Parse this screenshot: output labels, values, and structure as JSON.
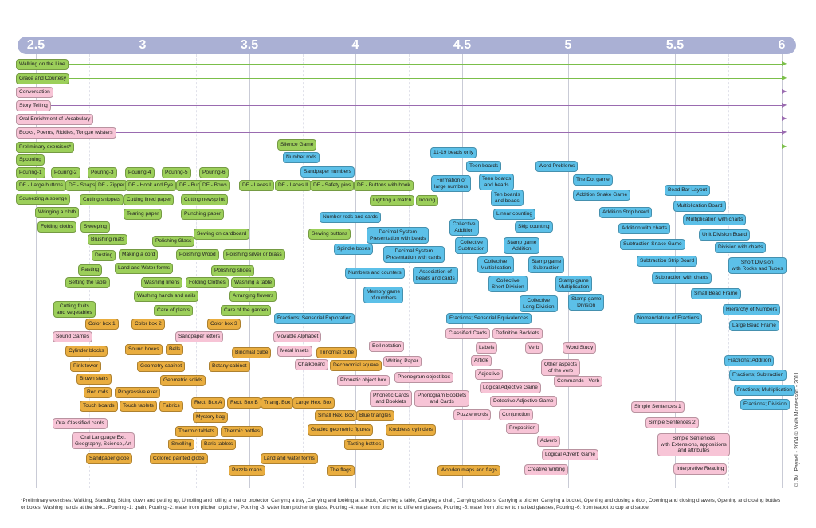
{
  "axis": {
    "ticks": [
      "2.5",
      "3",
      "3.5",
      "4",
      "4.5",
      "5",
      "5.5",
      "6"
    ],
    "bar_color": "#aab0d4"
  },
  "colors": {
    "green": "#9ccf5a",
    "pink": "#f7c4d6",
    "orange": "#e9ad3f",
    "blue": "#5cc0e8"
  },
  "spans": [
    {
      "label": "Walking on the Line",
      "color": "green",
      "line": "#7bbf4a"
    },
    {
      "label": "Grace and Courtesy",
      "color": "green",
      "line": "#7bbf4a"
    },
    {
      "label": "Conversation",
      "color": "pink",
      "line": "#9a6bb0"
    },
    {
      "label": "Story Telling",
      "color": "pink",
      "line": "#9a6bb0"
    },
    {
      "label": "Oral Enrichment of Vocabulary",
      "color": "pink",
      "line": "#9a6bb0"
    },
    {
      "label": "Books, Poems, Riddles, Tongue twisters",
      "color": "pink",
      "line": "#9a6bb0"
    },
    {
      "label": "Preliminary exercises*",
      "color": "green",
      "line": "#7bbf4a"
    }
  ],
  "activities": [
    {
      "label": "Silence Game",
      "color": "green"
    },
    {
      "label": "Spooning",
      "color": "green"
    },
    {
      "label": "Pouring-1",
      "color": "green"
    },
    {
      "label": "Pouring-2",
      "color": "green"
    },
    {
      "label": "Pouring-3",
      "color": "green"
    },
    {
      "label": "Pouring-4",
      "color": "green"
    },
    {
      "label": "Pouring-5",
      "color": "green"
    },
    {
      "label": "Pouring-6",
      "color": "green"
    },
    {
      "label": "DF - Large buttons",
      "color": "green"
    },
    {
      "label": "DF - Snaps",
      "color": "green"
    },
    {
      "label": "DF - Zipper",
      "color": "green"
    },
    {
      "label": "DF - Hook and Eye",
      "color": "green"
    },
    {
      "label": "DF - Buckles",
      "color": "green"
    },
    {
      "label": "DF - Bows",
      "color": "green"
    },
    {
      "label": "DF - Laces I",
      "color": "green"
    },
    {
      "label": "DF - Laces II",
      "color": "green"
    },
    {
      "label": "DF - Safety pins",
      "color": "green"
    },
    {
      "label": "DF - Buttons with hook",
      "color": "green"
    },
    {
      "label": "Squeezing a sponge",
      "color": "green"
    },
    {
      "label": "Cutting snippets",
      "color": "green"
    },
    {
      "label": "Cutting lined paper",
      "color": "green"
    },
    {
      "label": "Cutting newsprint",
      "color": "green"
    },
    {
      "label": "Lighting a match",
      "color": "green"
    },
    {
      "label": "Ironing",
      "color": "green"
    },
    {
      "label": "Wringing a cloth",
      "color": "green"
    },
    {
      "label": "Tearing paper",
      "color": "green"
    },
    {
      "label": "Punching paper",
      "color": "green"
    },
    {
      "label": "Folding cloths",
      "color": "green"
    },
    {
      "label": "Sweeping",
      "color": "green"
    },
    {
      "label": "Sewing on cardboard",
      "color": "green"
    },
    {
      "label": "Sewing buttons",
      "color": "green"
    },
    {
      "label": "Brushing mats",
      "color": "green"
    },
    {
      "label": "Polishing Glass",
      "color": "green"
    },
    {
      "label": "Dusting",
      "color": "green"
    },
    {
      "label": "Making a cord",
      "color": "green"
    },
    {
      "label": "Polishing Wood",
      "color": "green"
    },
    {
      "label": "Polishing silver or brass",
      "color": "green"
    },
    {
      "label": "Pasting",
      "color": "green"
    },
    {
      "label": "Land and Water forms",
      "color": "green"
    },
    {
      "label": "Polishing shoes",
      "color": "green"
    },
    {
      "label": "Setting the table",
      "color": "green"
    },
    {
      "label": "Washing linens",
      "color": "green"
    },
    {
      "label": "Folding Clothes",
      "color": "green"
    },
    {
      "label": "Washing a table",
      "color": "green"
    },
    {
      "label": "Washing hands and nails",
      "color": "green"
    },
    {
      "label": "Arranging flowers",
      "color": "green"
    },
    {
      "label": "Cutting fruits\nand vegetables",
      "color": "green"
    },
    {
      "label": "Care of plants",
      "color": "green"
    },
    {
      "label": "Care of the garden",
      "color": "green"
    },
    {
      "label": "Number rods",
      "color": "blue"
    },
    {
      "label": "Sandpaper numbers",
      "color": "blue"
    },
    {
      "label": "11-19 beads only",
      "color": "blue"
    },
    {
      "label": "Teen boards",
      "color": "blue"
    },
    {
      "label": "Formation of\nlarge numbers",
      "color": "blue"
    },
    {
      "label": "Teen boards\nand beads",
      "color": "blue"
    },
    {
      "label": "Ten boards\nand beads",
      "color": "blue"
    },
    {
      "label": "Word Problems",
      "color": "blue"
    },
    {
      "label": "The Dot game",
      "color": "blue"
    },
    {
      "label": "Addition Snake Game",
      "color": "blue"
    },
    {
      "label": "Bead Bar Layout",
      "color": "blue"
    },
    {
      "label": "Multiplication Board",
      "color": "blue"
    },
    {
      "label": "Multiplication with charts",
      "color": "blue"
    },
    {
      "label": "Linear counting",
      "color": "blue"
    },
    {
      "label": "Addition Strip board",
      "color": "blue"
    },
    {
      "label": "Number rods and cards",
      "color": "blue"
    },
    {
      "label": "Collective\nAddition",
      "color": "blue"
    },
    {
      "label": "Skip counting",
      "color": "blue"
    },
    {
      "label": "Addition with charts",
      "color": "blue"
    },
    {
      "label": "Unit Division Board",
      "color": "blue"
    },
    {
      "label": "Decimal System\nPresentation with beads",
      "color": "blue"
    },
    {
      "label": "Collective\nSubtraction",
      "color": "blue"
    },
    {
      "label": "Stamp game\nAddition",
      "color": "blue"
    },
    {
      "label": "Subtraction Snake Game",
      "color": "blue"
    },
    {
      "label": "Division with charts",
      "color": "blue"
    },
    {
      "label": "Spindle boxes",
      "color": "blue"
    },
    {
      "label": "Decimal System\nPresentation with cards",
      "color": "blue"
    },
    {
      "label": "Collective\nMultiplication",
      "color": "blue"
    },
    {
      "label": "Stamp game\nSubtraction",
      "color": "blue"
    },
    {
      "label": "Subtraction Strip Board",
      "color": "blue"
    },
    {
      "label": "Short Division\nwith Rocks and Tubes",
      "color": "blue"
    },
    {
      "label": "Numbers and counters",
      "color": "blue"
    },
    {
      "label": "Association of\nbeads and cards",
      "color": "blue"
    },
    {
      "label": "Collective\nShort Division",
      "color": "blue"
    },
    {
      "label": "Stamp game\nMultiplication",
      "color": "blue"
    },
    {
      "label": "Subtraction with charts",
      "color": "blue"
    },
    {
      "label": "Memory game\nof numbers",
      "color": "blue"
    },
    {
      "label": "Small Bead Frame",
      "color": "blue"
    },
    {
      "label": "Collective\nLong Division",
      "color": "blue"
    },
    {
      "label": "Stamp game\nDivision",
      "color": "blue"
    },
    {
      "label": "Hierarchy of Numbers",
      "color": "blue"
    },
    {
      "label": "Fractions; Sensorial Exploration",
      "color": "blue"
    },
    {
      "label": "Fractions; Sensorial Equivalences",
      "color": "blue"
    },
    {
      "label": "Nomenclature of Fractions",
      "color": "blue"
    },
    {
      "label": "Large Bead Frame",
      "color": "blue"
    },
    {
      "label": "Fractions; Addition",
      "color": "blue"
    },
    {
      "label": "Fractions; Subtraction",
      "color": "blue"
    },
    {
      "label": "Fractions; Multiplication",
      "color": "blue"
    },
    {
      "label": "Fractions; Division",
      "color": "blue"
    },
    {
      "label": "Color box 1",
      "color": "orange"
    },
    {
      "label": "Color box 2",
      "color": "orange"
    },
    {
      "label": "Color box 3",
      "color": "orange"
    },
    {
      "label": "Sandpaper letters",
      "color": "pink"
    },
    {
      "label": "Sound Games",
      "color": "pink"
    },
    {
      "label": "Movable Alphabet",
      "color": "pink"
    },
    {
      "label": "Classified Cards",
      "color": "pink"
    },
    {
      "label": "Definition Booklets",
      "color": "pink"
    },
    {
      "label": "Cylinder blocks",
      "color": "orange"
    },
    {
      "label": "Sound boxes",
      "color": "orange"
    },
    {
      "label": "Bells",
      "color": "orange"
    },
    {
      "label": "Binomial cube",
      "color": "orange"
    },
    {
      "label": "Metal Insets",
      "color": "pink"
    },
    {
      "label": "Trinomial cube",
      "color": "orange"
    },
    {
      "label": "Bell notation",
      "color": "pink"
    },
    {
      "label": "Labels",
      "color": "pink"
    },
    {
      "label": "Verb",
      "color": "pink"
    },
    {
      "label": "Word Study",
      "color": "pink"
    },
    {
      "label": "Pink tower",
      "color": "orange"
    },
    {
      "label": "Geometry cabinet",
      "color": "orange"
    },
    {
      "label": "Botany cabinet",
      "color": "orange"
    },
    {
      "label": "Chalkboard",
      "color": "pink"
    },
    {
      "label": "Deconomial square",
      "color": "orange"
    },
    {
      "label": "Writing Paper",
      "color": "pink"
    },
    {
      "label": "Article",
      "color": "pink"
    },
    {
      "label": "Other aspects\nof the verb",
      "color": "pink"
    },
    {
      "label": "Brown stairs",
      "color": "orange"
    },
    {
      "label": "Geometric solids",
      "color": "orange"
    },
    {
      "label": "Phonogram object box",
      "color": "pink"
    },
    {
      "label": "Adjective",
      "color": "pink"
    },
    {
      "label": "Phonetic object box",
      "color": "pink"
    },
    {
      "label": "Commands - Verb",
      "color": "pink"
    },
    {
      "label": "Red rods",
      "color": "orange"
    },
    {
      "label": "Progressive exer",
      "color": "orange"
    },
    {
      "label": "Logical Adjective Game",
      "color": "pink"
    },
    {
      "label": "Phonetic Cards\nand Booklets",
      "color": "pink"
    },
    {
      "label": "Phonogram Booklets\nand Cards",
      "color": "pink"
    },
    {
      "label": "Touch boards",
      "color": "orange"
    },
    {
      "label": "Touch tablets",
      "color": "orange"
    },
    {
      "label": "Fabrics",
      "color": "orange"
    },
    {
      "label": "Rect. Box A",
      "color": "orange"
    },
    {
      "label": "Rect. Box B",
      "color": "orange"
    },
    {
      "label": "Triang. Box",
      "color": "orange"
    },
    {
      "label": "Large Hex. Box",
      "color": "orange"
    },
    {
      "label": "Detective Adjective Game",
      "color": "pink"
    },
    {
      "label": "Simple Sentences 1",
      "color": "pink"
    },
    {
      "label": "Small Hex. Box",
      "color": "orange"
    },
    {
      "label": "Blue triangles",
      "color": "orange"
    },
    {
      "label": "Puzzle words",
      "color": "pink"
    },
    {
      "label": "Conjunction",
      "color": "pink"
    },
    {
      "label": "Mystery bag",
      "color": "orange"
    },
    {
      "label": "Oral Classified cards",
      "color": "pink"
    },
    {
      "label": "Simple Sentences 2",
      "color": "pink"
    },
    {
      "label": "Thermic tablets",
      "color": "orange"
    },
    {
      "label": "Thermic bottles",
      "color": "orange"
    },
    {
      "label": "Graded geometric figures",
      "color": "orange"
    },
    {
      "label": "Knobless cylinders",
      "color": "orange"
    },
    {
      "label": "Preposition",
      "color": "pink"
    },
    {
      "label": "Oral Language Ext.\nGeography, Science, Art",
      "color": "pink"
    },
    {
      "label": "Smelling",
      "color": "orange"
    },
    {
      "label": "Baric tablets",
      "color": "orange"
    },
    {
      "label": "Tasting bottles",
      "color": "orange"
    },
    {
      "label": "Adverb",
      "color": "pink"
    },
    {
      "label": "Simple Sentences\nwith Extensions, appositions\nand attributes",
      "color": "pink"
    },
    {
      "label": "Sandpaper globe",
      "color": "orange"
    },
    {
      "label": "Colored painted globe",
      "color": "orange"
    },
    {
      "label": "Land and water forms",
      "color": "orange"
    },
    {
      "label": "Logical Adverb Game",
      "color": "pink"
    },
    {
      "label": "Puzzle maps",
      "color": "orange"
    },
    {
      "label": "The flags",
      "color": "orange"
    },
    {
      "label": "Wooden maps and flags",
      "color": "orange"
    },
    {
      "label": "Creative Writing",
      "color": "pink"
    },
    {
      "label": "Interpretive Reading",
      "color": "pink"
    }
  ],
  "footnote": "*Preliminary exercises: Walking, Standing, Sitting down and getting up, Unrolling and rolling a mat or protector, Carrying a tray ,Carrying and looking at a book, Carrying a table, Carrying a chair, Carrying scissors, Carrying a pitcher,  Carrying a bucket, Opening and closing a door, Opening and closing drawers, Opening and closing bottles or boxes, Washing hands at the sink... Pouring -1: grain, Pouring -2: water from pitcher to pitcher, Pouring -3: water from pitcher to glass, Pouring -4: water from pitcher to different glasses, Pouring -5: water from pitcher to marked glasses, Pouring -6: from teapot to cup and sauce.",
  "credit": "© JM. Paynel - 2004  © Voilà Montessori - 2011"
}
